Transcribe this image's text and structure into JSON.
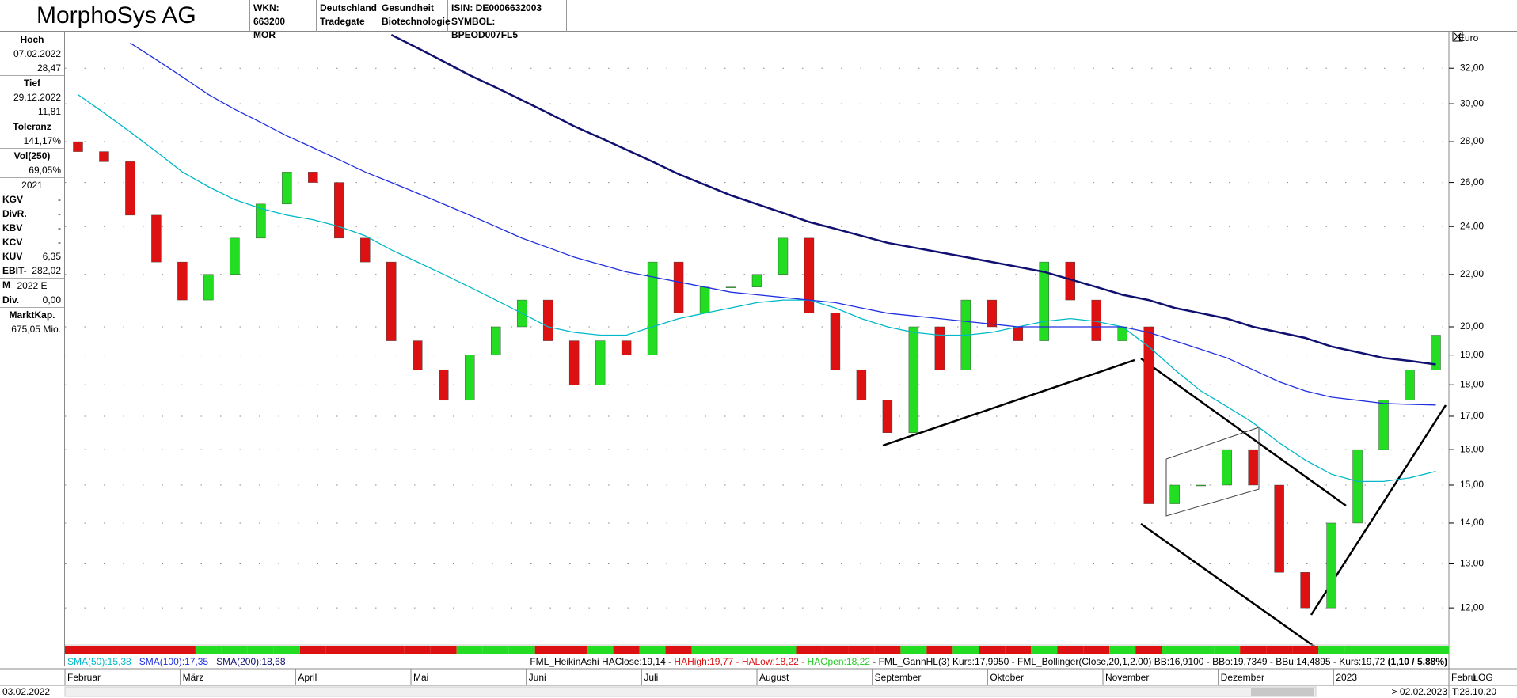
{
  "header": {
    "title": "MorphoSys AG",
    "cells": [
      [
        "WKN: 663200",
        "MOR"
      ],
      [
        "Deutschland",
        "Tradegate"
      ],
      [
        "Gesundheit",
        "Biotechnologie"
      ],
      [
        "ISIN: DE0006632003",
        "SYMBOL: BPEOD007FL5"
      ]
    ]
  },
  "sidebar": {
    "blocks": [
      {
        "title": "Hoch",
        "lines": [
          "07.02.2022",
          "28,47"
        ]
      },
      {
        "title": "Tief",
        "lines": [
          "29.12.2022",
          "11,81"
        ]
      },
      {
        "title": "Toleranz",
        "lines": [
          "141,17%"
        ]
      },
      {
        "title": "Vol(250)",
        "lines": [
          "69,05%"
        ]
      }
    ],
    "year1": "2021",
    "rows1": [
      [
        "KGV",
        "-"
      ],
      [
        "DivR.",
        "-"
      ],
      [
        "KBV",
        "-"
      ],
      [
        "KCV",
        "-"
      ],
      [
        "KUV",
        "6,35"
      ],
      [
        "EBIT-M",
        "282,02"
      ]
    ],
    "year2": "2022 E",
    "rows2": [
      [
        "Div.",
        "0,00"
      ]
    ],
    "cap": {
      "title": "MarktKap.",
      "lines": [
        "675,05 Mio."
      ]
    }
  },
  "chart_data": {
    "type": "candlestick",
    "unit": "Euro",
    "log_scale": true,
    "grid": true,
    "month_labels": [
      "Februar",
      "März",
      "April",
      "Mai",
      "Juni",
      "Juli",
      "August",
      "September",
      "Oktober",
      "November",
      "Dezember",
      "2023",
      "Febru"
    ],
    "ylim": [
      11.25,
      34.2
    ],
    "yticks": [
      {
        "value": 12,
        "label": "12,00"
      },
      {
        "value": 13,
        "label": "13,00"
      },
      {
        "value": 14,
        "label": "14,00"
      },
      {
        "value": 15,
        "label": "15,00"
      },
      {
        "value": 16,
        "label": "16,00"
      },
      {
        "value": 17,
        "label": "17,00"
      },
      {
        "value": 18,
        "label": "18,00"
      },
      {
        "value": 19,
        "label": "19,00"
      },
      {
        "value": 20,
        "label": "20,00"
      },
      {
        "value": 22,
        "label": "22,00"
      },
      {
        "value": 24,
        "label": "24,00"
      },
      {
        "value": 26,
        "label": "26,00"
      },
      {
        "value": 28,
        "label": "28,00"
      },
      {
        "value": 30,
        "label": "30,00"
      },
      {
        "value": 32,
        "label": "32,00"
      }
    ],
    "up_color": "#22dd22",
    "down_color": "#dd1111",
    "open": [
      28.0,
      27.5,
      27.0,
      24.5,
      22.5,
      21.0,
      22.0,
      23.5,
      25.0,
      26.5,
      26.0,
      23.5,
      22.5,
      19.5,
      18.5,
      17.5,
      19.0,
      20.0,
      21.0,
      19.5,
      18.0,
      19.5,
      19.0,
      22.5,
      20.5,
      21.5,
      21.5,
      22.0,
      23.5,
      20.5,
      18.5,
      17.5,
      16.5,
      20.0,
      18.5,
      21.0,
      20.0,
      19.5,
      22.5,
      21.0,
      19.5,
      20.0,
      14.5,
      15.0,
      15.0,
      16.0,
      15.0,
      12.8,
      12.0,
      14.0,
      16.0,
      17.5,
      18.5
    ],
    "close": [
      27.5,
      27.0,
      24.5,
      22.5,
      21.0,
      22.0,
      23.5,
      25.0,
      26.5,
      26.0,
      23.5,
      22.5,
      19.5,
      18.5,
      17.5,
      19.0,
      20.0,
      21.0,
      19.5,
      18.0,
      19.5,
      19.0,
      22.5,
      20.5,
      21.5,
      21.5,
      22.0,
      23.5,
      20.5,
      18.5,
      17.5,
      16.5,
      20.0,
      18.5,
      21.0,
      20.0,
      19.5,
      22.5,
      21.0,
      19.5,
      20.0,
      14.5,
      15.0,
      15.0,
      16.0,
      15.0,
      12.8,
      12.0,
      14.0,
      16.0,
      17.5,
      18.5,
      19.7
    ],
    "series": [
      {
        "name": "SMA(50):15,38",
        "color": "#00b8c8",
        "values": [
          30.5,
          29.5,
          28.5,
          27.5,
          26.5,
          25.8,
          25.2,
          24.8,
          24.5,
          24.3,
          24.0,
          23.6,
          23.0,
          22.5,
          22.0,
          21.5,
          21.0,
          20.5,
          20.0,
          19.8,
          19.7,
          19.7,
          20.0,
          20.3,
          20.5,
          20.7,
          20.9,
          21.0,
          21.0,
          20.7,
          20.3,
          20.0,
          19.8,
          19.7,
          19.7,
          19.8,
          20.0,
          20.2,
          20.3,
          20.2,
          20.0,
          19.3,
          18.5,
          17.8,
          17.3,
          16.8,
          16.2,
          15.7,
          15.3,
          15.1,
          15.1,
          15.2,
          15.38
        ]
      },
      {
        "name": "SMA(100):17,35",
        "color": "#2030e0",
        "values": [
          null,
          null,
          33.5,
          32.5,
          31.5,
          30.5,
          29.7,
          29.0,
          28.3,
          27.7,
          27.1,
          26.5,
          26.0,
          25.5,
          25.0,
          24.5,
          24.0,
          23.5,
          23.1,
          22.7,
          22.4,
          22.1,
          21.9,
          21.7,
          21.5,
          21.3,
          21.2,
          21.1,
          21.0,
          20.9,
          20.7,
          20.5,
          20.4,
          20.3,
          20.2,
          20.1,
          20.0,
          20.0,
          20.0,
          20.0,
          20.0,
          19.8,
          19.5,
          19.2,
          18.9,
          18.5,
          18.1,
          17.8,
          17.6,
          17.5,
          17.4,
          17.37,
          17.35
        ]
      },
      {
        "name": "SMA(200):18,68",
        "color": "#101070",
        "values": [
          null,
          null,
          null,
          null,
          null,
          null,
          null,
          null,
          null,
          null,
          null,
          null,
          34.0,
          33.2,
          32.4,
          31.6,
          30.9,
          30.2,
          29.5,
          28.8,
          28.2,
          27.6,
          27.0,
          26.4,
          25.9,
          25.4,
          25.0,
          24.6,
          24.2,
          23.9,
          23.6,
          23.3,
          23.1,
          22.9,
          22.7,
          22.5,
          22.3,
          22.1,
          21.8,
          21.5,
          21.2,
          21.0,
          20.7,
          20.5,
          20.3,
          20.0,
          19.8,
          19.6,
          19.3,
          19.1,
          18.9,
          18.8,
          18.68
        ]
      }
    ],
    "status": [
      {
        "text": "FML_HeikinAshi HAClose:19,14 - ",
        "color": "#000000"
      },
      {
        "text": "HAHigh:19,77 - ",
        "color": "#dd1111"
      },
      {
        "text": "HALow:18,22 - ",
        "color": "#dd1111"
      },
      {
        "text": "HAOpen:18,22",
        "color": "#22cc22"
      },
      {
        "text": " - FML_GannHL(3) Kurs:17,9950 - FML_Bollinger(Close,20,1,2.00) BB:16,9100 - BBo:19,7349 - BBu:14,4895 - Kurs:19,72 ",
        "color": "#000000"
      },
      {
        "text": "(1,10 / 5,88%)",
        "color": "#000000"
      }
    ]
  },
  "footer": {
    "start": "03.02.2022",
    "end": "> 02.02.2023",
    "scale": "LOG",
    "time": "T:28.10.20"
  }
}
